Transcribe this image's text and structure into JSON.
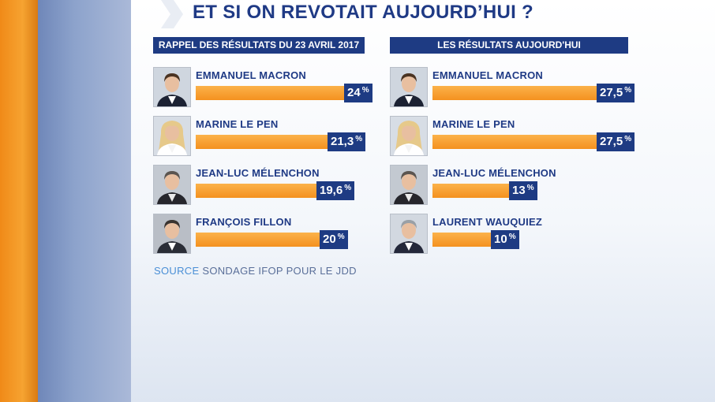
{
  "title": "ET SI ON REVOTAIT AUJOURD’HUI ?",
  "source": {
    "label": "SOURCE",
    "text": "SONDAGE IFOP POUR LE JDD"
  },
  "colors": {
    "bar": "#f4911f",
    "accent": "#1e3b83"
  },
  "chart_data": [
    {
      "type": "bar",
      "title": "RAPPEL DES RÉSULTATS DU 23 AVRIL 2017",
      "categories": [
        "EMMANUEL MACRON",
        "MARINE LE PEN",
        "JEAN-LUC MÉLENCHON",
        "FRANÇOIS FILLON"
      ],
      "values": [
        24,
        21.3,
        19.6,
        20
      ],
      "value_labels": [
        "24",
        "21,3",
        "19,6",
        "20"
      ],
      "unit": "%",
      "portraits": [
        "macron-portrait-icon",
        "lepen-portrait-icon",
        "melenchon-portrait-icon",
        "fillon-portrait-icon"
      ]
    },
    {
      "type": "bar",
      "title": "LES RÉSULTATS AUJOURD'HUI",
      "categories": [
        "EMMANUEL MACRON",
        "MARINE LE PEN",
        "JEAN-LUC MÉLENCHON",
        "LAURENT WAUQUIEZ"
      ],
      "values": [
        27.5,
        27.5,
        13,
        10
      ],
      "value_labels": [
        "27,5",
        "27,5",
        "13",
        "10"
      ],
      "unit": "%",
      "portraits": [
        "macron-portrait-icon",
        "lepen-portrait-icon",
        "melenchon-portrait-icon",
        "wauquiez-portrait-icon"
      ]
    }
  ]
}
